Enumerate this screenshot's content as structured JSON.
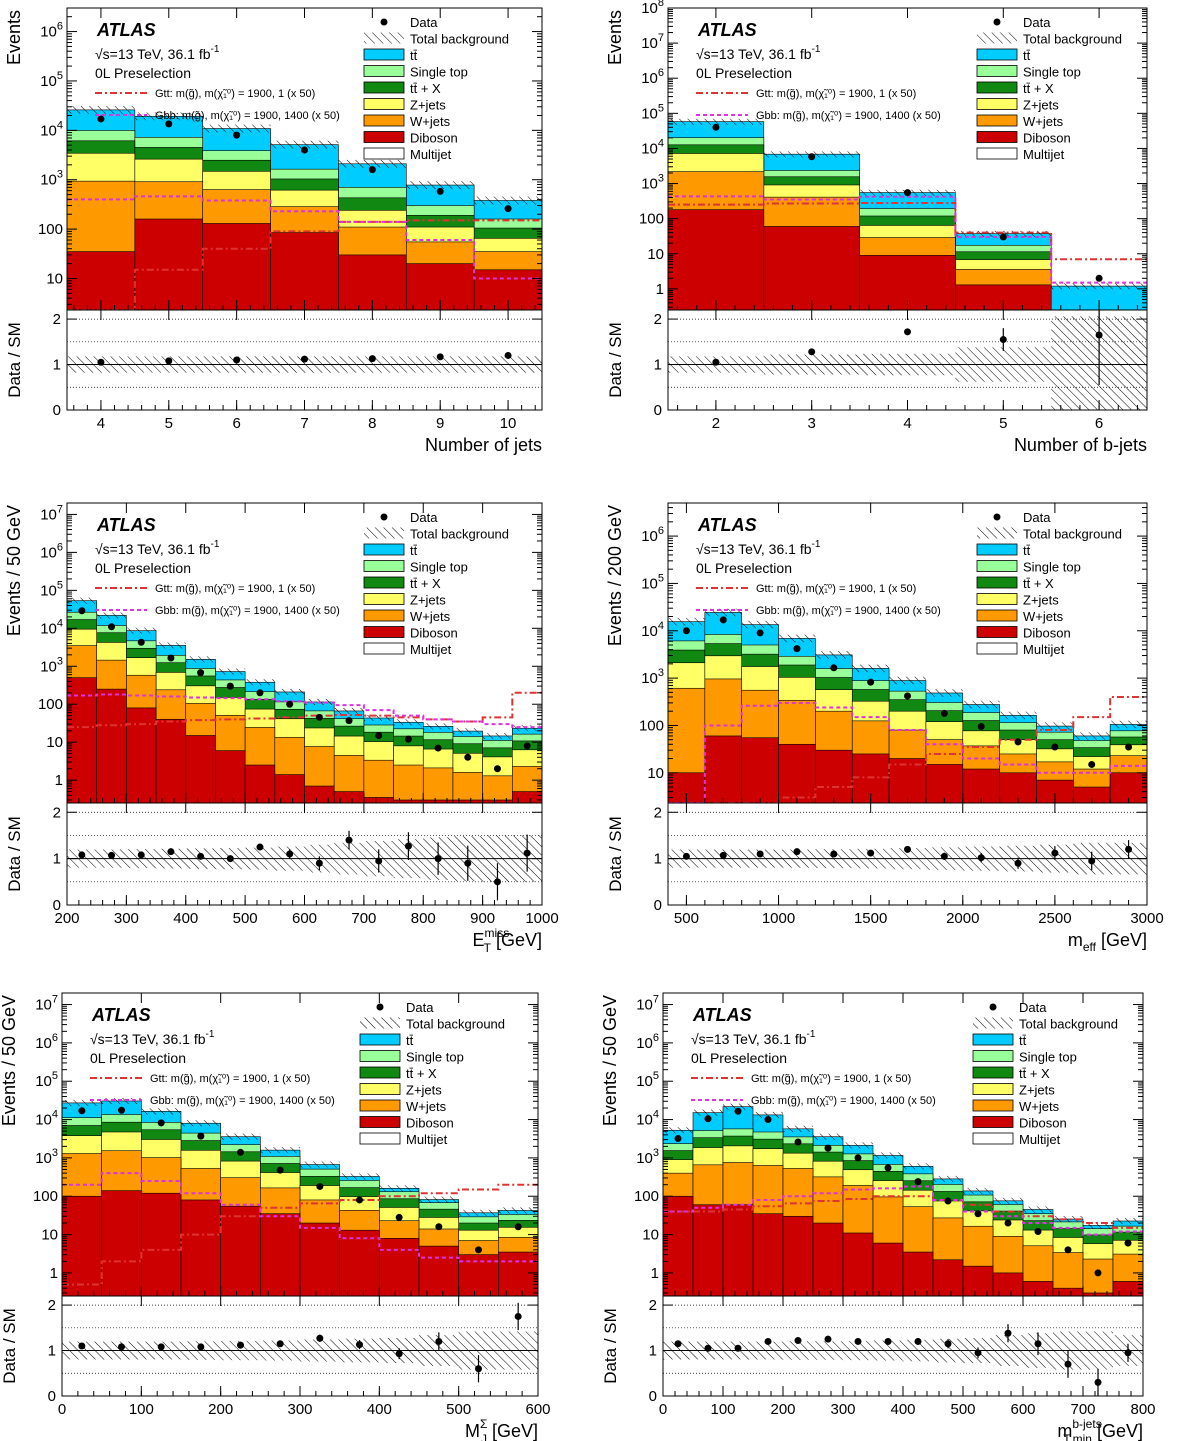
{
  "colors": {
    "ttbar": "#00ccff",
    "singletop": "#99ff99",
    "ttX": "#118811",
    "zjets": "#ffff66",
    "wjets": "#ff9900",
    "diboson": "#cc0000",
    "multijet": "#ffffff",
    "gtt": "#dd3333",
    "gbb": "#dd33dd",
    "data": "#000000"
  },
  "common": {
    "atlas": "ATLAS",
    "energy": "√s=13 TeV, 36.1 fb",
    "lumi_sup": "-1",
    "region": "0L Preselection",
    "ratio_ylabel": "Data / SM",
    "ratio_ticks": [
      "0",
      "1",
      "2"
    ],
    "legend": {
      "data": "Data",
      "total": "Total background",
      "ttbar": "tt̄",
      "singletop": "Single top",
      "ttX": "tt̄ + X",
      "zjets": "Z+jets",
      "wjets": "W+jets",
      "diboson": "Diboson",
      "multijet": "Multijet",
      "gtt": "Gtt: m(g̃), m(χ̃₁⁰) = 1900, 1 (x 50)",
      "gbb": "Gbb: m(g̃), m(χ̃₁⁰) = 1900, 1400 (x 50)"
    }
  },
  "chart_data": [
    {
      "type": "bar",
      "stacked": true,
      "ylog": true,
      "xlabel": "Number of jets",
      "ylabel": "Events",
      "xlim": [
        3.5,
        10.5
      ],
      "ylim": [
        2.3,
        3000000
      ],
      "x_ticks": [
        4,
        5,
        6,
        7,
        8,
        9,
        10
      ],
      "edges": [
        3.5,
        4.5,
        5.5,
        6.5,
        7.5,
        8.5,
        9.5,
        10.5
      ],
      "series": {
        "diboson": [
          35,
          160,
          130,
          85,
          30,
          20,
          15
        ],
        "wjets": [
          900,
          750,
          500,
          200,
          80,
          35,
          20
        ],
        "zjets": [
          2500,
          1700,
          850,
          330,
          130,
          55,
          30
        ],
        "ttX": [
          2700,
          1900,
          1000,
          420,
          190,
          80,
          40
        ],
        "singletop": [
          3800,
          2700,
          1400,
          600,
          270,
          110,
          55
        ],
        "ttbar": [
          16000,
          12000,
          7000,
          3500,
          1400,
          480,
          220
        ]
      },
      "gtt": [
        2.3,
        15,
        40,
        90,
        140,
        150,
        150
      ],
      "gbb": [
        400,
        460,
        380,
        230,
        140,
        60,
        10
      ],
      "data": [
        17000,
        13500,
        8000,
        4000,
        1600,
        580,
        260
      ],
      "ratio": [
        1.05,
        1.08,
        1.1,
        1.12,
        1.13,
        1.17,
        1.2
      ],
      "ratio_err": [
        0,
        0,
        0,
        0,
        0,
        0,
        0
      ]
    },
    {
      "type": "bar",
      "stacked": true,
      "ylog": true,
      "xlabel": "Number of b-jets",
      "ylabel": "Events",
      "xlim": [
        1.5,
        6.5
      ],
      "ylim": [
        0.25,
        100000000
      ],
      "x_ticks": [
        2,
        3,
        4,
        5,
        6
      ],
      "edges": [
        1.5,
        2.5,
        3.5,
        4.5,
        5.5,
        6.5
      ],
      "series": {
        "diboson": [
          180,
          60,
          9,
          1.3,
          0
        ],
        "wjets": [
          2000,
          350,
          20,
          2.3,
          0
        ],
        "zjets": [
          5000,
          500,
          35,
          3.2,
          0
        ],
        "ttX": [
          5500,
          650,
          55,
          4.6,
          0
        ],
        "singletop": [
          7500,
          800,
          75,
          6,
          0
        ],
        "ttbar": [
          38000,
          4500,
          360,
          20,
          1.2
        ]
      },
      "gtt": [
        250,
        270,
        280,
        40,
        7
      ],
      "gbb": [
        430,
        350,
        420,
        30,
        1.5
      ],
      "data": [
        40000,
        5800,
        550,
        30,
        2
      ],
      "ratio": [
        1.05,
        1.28,
        1.72,
        1.55,
        1.65
      ],
      "ratio_err": [
        0,
        0.05,
        0.07,
        0.25,
        1.1
      ]
    },
    {
      "type": "bar",
      "stacked": true,
      "ylog": true,
      "xlabel": "E",
      "xlabel_sub": "T",
      "xlabel_sup": "miss",
      "xlabel_unit": " [GeV]",
      "ylabel": "Events / 50 GeV",
      "xlim": [
        200,
        1000
      ],
      "ylim": [
        0.25,
        20000000
      ],
      "x_ticks": [
        200,
        300,
        400,
        500,
        600,
        700,
        800,
        900,
        1000
      ],
      "edges": [
        200,
        250,
        300,
        350,
        400,
        450,
        500,
        550,
        600,
        650,
        700,
        750,
        800,
        850,
        900,
        950,
        1000
      ],
      "series": {
        "diboson": [
          500,
          250,
          80,
          40,
          15,
          6,
          2.5,
          1.4,
          0.7,
          0.5,
          0.35,
          0.3,
          0.3,
          0.3,
          0.3,
          0.5
        ],
        "wjets": [
          3000,
          1200,
          500,
          200,
          90,
          45,
          22,
          12,
          7,
          4,
          3,
          2.2,
          1.8,
          1.3,
          1,
          1.8
        ],
        "zjets": [
          6000,
          2800,
          1100,
          450,
          200,
          100,
          50,
          28,
          16,
          10,
          7,
          5.5,
          4.5,
          3.5,
          2.8,
          4
        ],
        "ttX": [
          7500,
          3400,
          1300,
          550,
          250,
          125,
          60,
          32,
          19,
          12,
          8,
          6.5,
          5,
          4,
          3,
          4.5
        ],
        "singletop": [
          9500,
          4200,
          1700,
          700,
          320,
          160,
          80,
          42,
          24,
          15,
          10,
          8,
          6.5,
          5,
          4,
          5.5
        ],
        "ttbar": [
          27000,
          10000,
          4000,
          1600,
          650,
          290,
          165,
          95,
          48,
          25,
          15,
          11,
          8,
          5.5,
          3.5,
          7
        ]
      },
      "gtt": [
        25,
        28,
        30,
        35,
        38,
        40,
        42,
        45,
        50,
        52,
        50,
        45,
        40,
        35,
        45,
        200
      ],
      "gbb": [
        170,
        180,
        170,
        160,
        150,
        145,
        135,
        120,
        110,
        95,
        70,
        50,
        40,
        35,
        30,
        25
      ],
      "data": [
        29000,
        11000,
        4300,
        1650,
        680,
        300,
        200,
        100,
        45,
        37,
        15,
        12,
        7,
        4,
        2,
        8
      ],
      "ratio": [
        1.08,
        1.07,
        1.08,
        1.15,
        1.05,
        1.0,
        1.25,
        1.1,
        0.9,
        1.4,
        0.95,
        1.27,
        1.0,
        0.9,
        0.5,
        1.12
      ],
      "ratio_err": [
        0.02,
        0.02,
        0.03,
        0.04,
        0.05,
        0.06,
        0.07,
        0.1,
        0.15,
        0.2,
        0.25,
        0.3,
        0.35,
        0.38,
        0.4,
        0.4
      ]
    },
    {
      "type": "bar",
      "stacked": true,
      "ylog": true,
      "xlabel": "m",
      "xlabel_sub": "eff",
      "xlabel_unit": " [GeV]",
      "ylabel": "Events / 200 GeV",
      "xlim": [
        400,
        3000
      ],
      "ylim": [
        2.3,
        5000000
      ],
      "x_ticks": [
        500,
        1000,
        1500,
        2000,
        2500,
        3000
      ],
      "edges": [
        400,
        600,
        800,
        1000,
        1200,
        1400,
        1600,
        1800,
        2000,
        2200,
        2400,
        2600,
        2800,
        3000
      ],
      "series": {
        "diboson": [
          10,
          60,
          55,
          40,
          30,
          25,
          20,
          15,
          12,
          10,
          7,
          5,
          10
        ],
        "wjets": [
          600,
          900,
          500,
          300,
          170,
          100,
          60,
          35,
          25,
          15,
          10,
          7,
          13
        ],
        "zjets": [
          1500,
          2000,
          1200,
          700,
          370,
          200,
          120,
          70,
          40,
          25,
          15,
          10,
          16
        ],
        "ttX": [
          1800,
          2400,
          1450,
          850,
          460,
          250,
          150,
          85,
          50,
          30,
          18,
          12,
          18
        ],
        "singletop": [
          2200,
          3000,
          1800,
          1000,
          560,
          310,
          180,
          100,
          60,
          35,
          22,
          14,
          20
        ],
        "ttbar": [
          9500,
          16000,
          8500,
          4000,
          1500,
          720,
          360,
          180,
          90,
          48,
          25,
          12,
          28
        ]
      },
      "gtt": [
        2.3,
        2.3,
        2.3,
        3,
        5,
        8,
        15,
        25,
        35,
        50,
        80,
        150,
        400
      ],
      "gbb": [
        2.3,
        100,
        260,
        300,
        240,
        150,
        80,
        40,
        20,
        15,
        10,
        10,
        14
      ],
      "data": [
        10000,
        17000,
        9000,
        4200,
        1650,
        820,
        420,
        180,
        95,
        45,
        35,
        15,
        35
      ],
      "ratio": [
        1.05,
        1.07,
        1.1,
        1.15,
        1.1,
        1.12,
        1.2,
        1.05,
        1.02,
        0.9,
        1.12,
        0.95,
        1.2
      ],
      "ratio_err": [
        0.02,
        0.02,
        0.02,
        0.02,
        0.03,
        0.04,
        0.06,
        0.08,
        0.1,
        0.12,
        0.15,
        0.2,
        0.2
      ]
    },
    {
      "type": "bar",
      "stacked": true,
      "ylog": true,
      "xlabel": "M",
      "xlabel_sub": "J",
      "xlabel_sup": "Σ",
      "xlabel_unit": " [GeV]",
      "ylabel": "Events / 50 GeV",
      "xlim": [
        0,
        600
      ],
      "ylim": [
        0.25,
        20000000
      ],
      "x_ticks": [
        0,
        100,
        200,
        300,
        400,
        500,
        600
      ],
      "edges": [
        0,
        50,
        100,
        150,
        200,
        250,
        300,
        350,
        400,
        450,
        500,
        550,
        600
      ],
      "series": {
        "diboson": [
          100,
          140,
          120,
          80,
          55,
          35,
          20,
          13,
          8,
          5,
          3,
          3.5
        ],
        "wjets": [
          1200,
          1400,
          900,
          450,
          250,
          130,
          60,
          30,
          15,
          9,
          4,
          5
        ],
        "zjets": [
          2500,
          3200,
          2000,
          1050,
          520,
          250,
          110,
          55,
          28,
          14,
          6,
          7
        ],
        "ttX": [
          3200,
          3800,
          2400,
          1250,
          620,
          300,
          140,
          70,
          35,
          18,
          7,
          8
        ],
        "singletop": [
          4200,
          5000,
          3000,
          1600,
          780,
          380,
          180,
          90,
          45,
          22,
          9,
          10
        ],
        "ttbar": [
          16000,
          17000,
          8000,
          3600,
          1350,
          500,
          160,
          70,
          30,
          14,
          8,
          9
        ]
      },
      "gtt": [
        0.5,
        2,
        4,
        10,
        30,
        50,
        65,
        80,
        100,
        120,
        150,
        200
      ],
      "gbb": [
        200,
        400,
        250,
        120,
        60,
        30,
        15,
        8,
        4,
        2.5,
        2,
        2
      ],
      "data": [
        17000,
        17500,
        8200,
        3700,
        1400,
        480,
        180,
        80,
        28,
        16,
        4,
        16
      ],
      "ratio": [
        1.1,
        1.08,
        1.08,
        1.08,
        1.12,
        1.15,
        1.27,
        1.13,
        0.93,
        1.2,
        0.6,
        1.75
      ],
      "ratio_err": [
        0.02,
        0.02,
        0.02,
        0.03,
        0.04,
        0.05,
        0.08,
        0.1,
        0.12,
        0.2,
        0.3,
        0.3
      ]
    },
    {
      "type": "bar",
      "stacked": true,
      "ylog": true,
      "xlabel": "m",
      "xlabel_sub": "T,min",
      "xlabel_sup": "b-jets",
      "xlabel_unit": " [GeV]",
      "ylabel": "Events / 50 GeV",
      "xlim": [
        0,
        800
      ],
      "ylim": [
        0.25,
        20000000
      ],
      "x_ticks": [
        0,
        100,
        200,
        300,
        400,
        500,
        600,
        700,
        800
      ],
      "edges": [
        0,
        50,
        100,
        150,
        200,
        250,
        300,
        350,
        400,
        450,
        500,
        550,
        600,
        650,
        700,
        750,
        800
      ],
      "series": {
        "diboson": [
          100,
          60,
          60,
          35,
          30,
          20,
          11,
          6,
          3.5,
          2.2,
          1.5,
          1,
          0.6,
          0.4,
          0.3,
          0.6
        ],
        "wjets": [
          300,
          600,
          700,
          600,
          500,
          300,
          180,
          90,
          50,
          25,
          15,
          8,
          4.5,
          3,
          2,
          2.5
        ],
        "zjets": [
          500,
          1200,
          1300,
          1100,
          800,
          500,
          300,
          160,
          90,
          48,
          25,
          15,
          8,
          5,
          3.5,
          4
        ],
        "ttX": [
          650,
          1500,
          1650,
          1350,
          1000,
          600,
          360,
          190,
          110,
          58,
          30,
          17,
          10,
          6,
          4,
          4.5
        ],
        "singletop": [
          800,
          1800,
          2000,
          1650,
          1200,
          700,
          420,
          230,
          130,
          70,
          36,
          20,
          12,
          7,
          4.5,
          5
        ],
        "ttbar": [
          2900,
          10000,
          16000,
          8500,
          2200,
          1450,
          850,
          480,
          220,
          80,
          30,
          15,
          10,
          4,
          3,
          6
        ]
      },
      "gtt": [
        40,
        40,
        45,
        55,
        65,
        75,
        85,
        100,
        100,
        80,
        60,
        40,
        30,
        25,
        20,
        15
      ],
      "gbb": [
        40,
        50,
        60,
        80,
        100,
        120,
        150,
        160,
        180,
        80,
        40,
        30,
        20,
        15,
        10,
        12
      ],
      "data": [
        3200,
        10500,
        16500,
        10000,
        2600,
        1800,
        1000,
        550,
        240,
        75,
        35,
        20,
        12,
        4,
        1,
        6
      ],
      "ratio": [
        1.15,
        1.05,
        1.05,
        1.2,
        1.22,
        1.25,
        1.2,
        1.2,
        1.2,
        1.15,
        0.95,
        1.38,
        1.15,
        0.7,
        0.3,
        0.95
      ],
      "ratio_err": [
        0.02,
        0.02,
        0.02,
        0.02,
        0.03,
        0.03,
        0.04,
        0.05,
        0.07,
        0.1,
        0.12,
        0.2,
        0.25,
        0.3,
        0.3,
        0.2
      ]
    }
  ]
}
